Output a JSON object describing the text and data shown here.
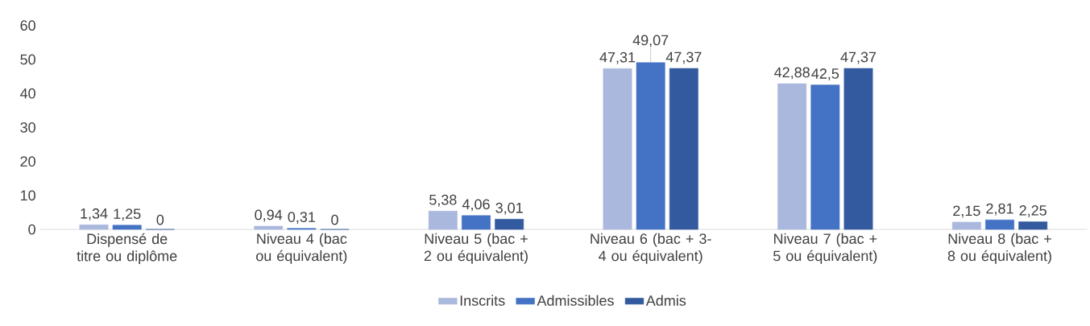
{
  "chart_data": {
    "type": "bar",
    "categories": [
      "Dispensé de titre ou diplôme",
      "Niveau 4 (bac ou équivalent)",
      "Niveau 5 (bac + 2 ou équivalent)",
      "Niveau 6 (bac + 3-4 ou équivalent)",
      "Niveau 7 (bac + 5 ou équivalent)",
      "Niveau 8 (bac + 8 ou équivalent)"
    ],
    "series": [
      {
        "name": "Inscrits",
        "color": "#a9b8dc",
        "values": [
          1.34,
          0.94,
          5.38,
          47.31,
          42.88,
          2.15
        ],
        "value_labels": [
          "1,34",
          "0,94",
          "5,38",
          "47,31",
          "42,88",
          "2,15"
        ]
      },
      {
        "name": "Admissibles",
        "color": "#4472c4",
        "values": [
          1.25,
          0.31,
          4.06,
          49.07,
          42.5,
          2.81
        ],
        "value_labels": [
          "1,25",
          "0,31",
          "4,06",
          "49,07",
          "42,5",
          "2,81"
        ]
      },
      {
        "name": "Admis",
        "color": "#335a9f",
        "values": [
          0,
          0,
          3.01,
          47.37,
          47.37,
          2.25
        ],
        "value_labels": [
          "0",
          "0",
          "3,01",
          "47,37",
          "47,37",
          "2,25"
        ]
      }
    ],
    "ylim": [
      0,
      60
    ],
    "yticks": [
      0,
      10,
      20,
      30,
      40,
      50,
      60
    ],
    "grid": false,
    "legend": "bottom"
  }
}
